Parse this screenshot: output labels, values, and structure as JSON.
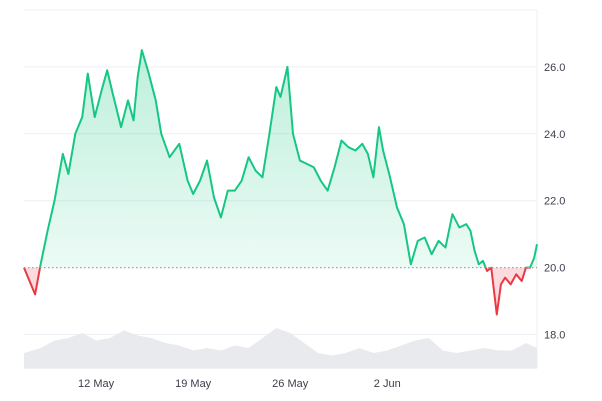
{
  "chart_data": {
    "type": "area",
    "title": "",
    "xlabel": "",
    "ylabel": "",
    "baseline": 20.0,
    "ylim": [
      17.0,
      27.7
    ],
    "y_ticks": [
      18.0,
      20.0,
      22.0,
      24.0,
      26.0
    ],
    "y_tick_labels": [
      "18.0",
      "20.0",
      "22.0",
      "24.0",
      "26.0"
    ],
    "xlim": [
      6.8,
      43.8
    ],
    "x_ticks": [
      12,
      19,
      26,
      33
    ],
    "x_tick_labels": [
      "12 May",
      "19 May",
      "26 May",
      "2 Jun"
    ],
    "grid": true,
    "legend": "none",
    "colors": {
      "above": "#16c784",
      "below": "#ea3943",
      "above_fill_top": "#16c784",
      "below_fill": "#ea3943",
      "volume": "#e8eaed",
      "grid": "#eceff3",
      "baseline_dots": "#9aa1ab",
      "tick_text": "#3b3f4a"
    },
    "series": [
      {
        "x": [
          6.8,
          7.6,
          8.0,
          8.5,
          9.0,
          9.6,
          10.0,
          10.5,
          11.0,
          11.4,
          11.9,
          12.4,
          12.8,
          13.2,
          13.8,
          14.3,
          14.7,
          15.0,
          15.3,
          15.8,
          16.3,
          16.7,
          17.3,
          18.0,
          18.6,
          19.0,
          19.5,
          20.0,
          20.5,
          21.0,
          21.5,
          22.0,
          22.5,
          23.0,
          23.5,
          24.0,
          24.5,
          25.0,
          25.3,
          25.8,
          26.2,
          26.7,
          27.2,
          27.7,
          28.2,
          28.7,
          29.2,
          29.7,
          30.2,
          30.7,
          31.2,
          31.6,
          32.0,
          32.4,
          32.7,
          33.2,
          33.7,
          34.2,
          34.7,
          35.2,
          35.7,
          36.2,
          36.7,
          37.2,
          37.7,
          38.2,
          38.7,
          39.0,
          39.3,
          39.6,
          39.9,
          40.2,
          40.5,
          40.9,
          41.2,
          41.5,
          41.9,
          42.3,
          42.7,
          43.0,
          43.3,
          43.6,
          43.8
        ],
        "y": [
          20.0,
          19.2,
          20.1,
          21.1,
          22.0,
          23.4,
          22.8,
          24.0,
          24.5,
          25.8,
          24.5,
          25.3,
          25.9,
          25.2,
          24.2,
          25.0,
          24.4,
          25.7,
          26.5,
          25.8,
          25.0,
          24.0,
          23.3,
          23.7,
          22.6,
          22.2,
          22.6,
          23.2,
          22.1,
          21.5,
          22.3,
          22.3,
          22.6,
          23.3,
          22.9,
          22.7,
          24.0,
          25.4,
          25.1,
          26.0,
          24.0,
          23.2,
          23.1,
          23.0,
          22.6,
          22.3,
          23.0,
          23.8,
          23.6,
          23.5,
          23.7,
          23.4,
          22.7,
          24.2,
          23.5,
          22.7,
          21.8,
          21.3,
          20.1,
          20.8,
          20.9,
          20.4,
          20.8,
          20.6,
          21.6,
          21.2,
          21.3,
          21.1,
          20.5,
          20.1,
          20.2,
          19.9,
          20.0,
          18.6,
          19.5,
          19.7,
          19.5,
          19.8,
          19.6,
          20.0,
          20.0,
          20.3,
          20.7
        ]
      }
    ],
    "volume_series": {
      "x": [
        6.8,
        8.0,
        9.0,
        10.0,
        11.0,
        12.0,
        13.0,
        14.0,
        15.0,
        16.0,
        17.0,
        18.0,
        19.0,
        20.0,
        21.0,
        22.0,
        23.0,
        24.0,
        25.0,
        26.0,
        27.0,
        28.0,
        29.0,
        30.0,
        31.0,
        32.0,
        33.0,
        34.0,
        35.0,
        36.0,
        37.0,
        38.0,
        39.0,
        40.0,
        41.0,
        42.0,
        43.0,
        43.8
      ],
      "y": [
        0.3,
        0.4,
        0.55,
        0.6,
        0.7,
        0.55,
        0.6,
        0.75,
        0.65,
        0.6,
        0.5,
        0.45,
        0.35,
        0.4,
        0.35,
        0.45,
        0.4,
        0.6,
        0.8,
        0.7,
        0.5,
        0.3,
        0.25,
        0.3,
        0.4,
        0.3,
        0.35,
        0.45,
        0.55,
        0.6,
        0.35,
        0.3,
        0.35,
        0.4,
        0.35,
        0.35,
        0.5,
        0.4
      ]
    }
  }
}
